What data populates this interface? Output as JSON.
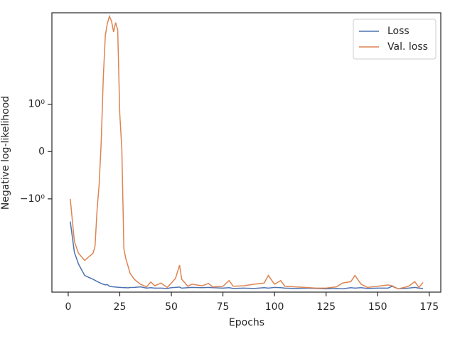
{
  "chart_data": {
    "type": "line",
    "xlabel": "Epochs",
    "ylabel": "Negative log-likelihood",
    "yscale": "symlog",
    "linthresh": 1,
    "xlim": [
      -7.9,
      180.6
    ],
    "ylim": [
      -155,
      141
    ],
    "xticks": [
      0,
      25,
      50,
      75,
      100,
      125,
      150,
      175
    ],
    "yticks": [
      {
        "value": -1,
        "label": "−10⁰"
      },
      0,
      {
        "value": 1,
        "label": "10⁰"
      }
    ],
    "legend": "upper right",
    "x": [
      1,
      3,
      5,
      8,
      10,
      12,
      13,
      14,
      15,
      16,
      17,
      18,
      19,
      20,
      21,
      22,
      23,
      24,
      25,
      26,
      27,
      28,
      29,
      30,
      32,
      35,
      38,
      40,
      42,
      45,
      48,
      50,
      52,
      54,
      55,
      58,
      60,
      65,
      68,
      70,
      75,
      78,
      80,
      85,
      90,
      95,
      97,
      100,
      103,
      105,
      110,
      115,
      120,
      125,
      130,
      133,
      137,
      139,
      142,
      145,
      150,
      155,
      157,
      160,
      165,
      168,
      170,
      172
    ],
    "series": [
      {
        "name": "Loss",
        "color": "#4c72b0",
        "values": [
          -3.4,
          -18,
          -34,
          -63,
          -70,
          -77,
          -82,
          -87,
          -92,
          -97,
          -101,
          -105,
          -103,
          -113,
          -115,
          -117,
          -118,
          -119,
          -120,
          -121,
          -122,
          -122,
          -123,
          -121,
          -120,
          -117,
          -125,
          -122,
          -125,
          -125,
          -127,
          -122,
          -120,
          -118,
          -125,
          -122,
          -120,
          -122,
          -120,
          -122,
          -125,
          -122,
          -127,
          -125,
          -127,
          -122,
          -125,
          -120,
          -122,
          -125,
          -127,
          -125,
          -127,
          -130,
          -127,
          -130,
          -122,
          -125,
          -122,
          -127,
          -125,
          -125,
          -113,
          -130,
          -125,
          -120,
          -125,
          -127
        ]
      },
      {
        "name": "Val. loss",
        "color": "#dd8452",
        "values": [
          -1,
          -10,
          -19,
          -28,
          -23,
          -19,
          -13,
          -1.8,
          -0.7,
          0.2,
          4.1,
          42,
          80,
          117,
          90,
          50,
          83,
          56,
          0.8,
          0.05,
          -15,
          -26,
          -38,
          -56,
          -77,
          -101,
          -117,
          -90,
          -110,
          -95,
          -120,
          -95,
          -74,
          -36,
          -77,
          -113,
          -101,
          -110,
          -97,
          -117,
          -113,
          -83,
          -113,
          -110,
          -101,
          -95,
          -63,
          -101,
          -83,
          -113,
          -117,
          -120,
          -125,
          -125,
          -117,
          -95,
          -88,
          -63,
          -101,
          -120,
          -113,
          -105,
          -110,
          -130,
          -113,
          -88,
          -120,
          -92
        ]
      }
    ]
  }
}
